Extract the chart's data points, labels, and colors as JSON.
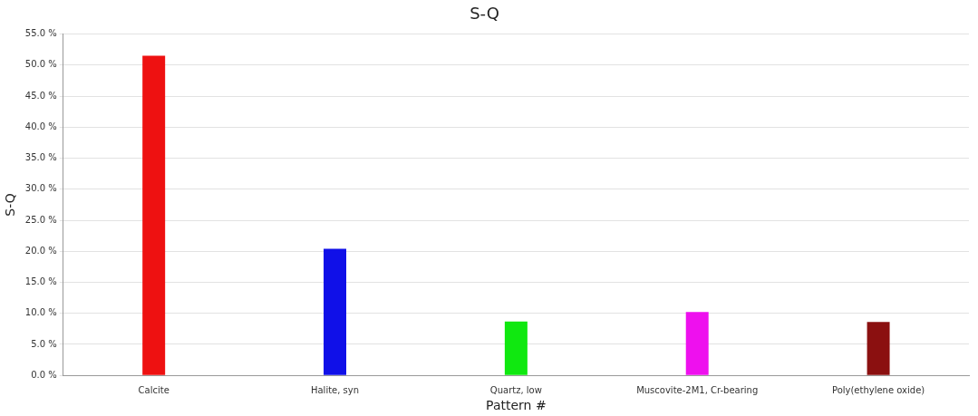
{
  "chart_data": {
    "type": "bar",
    "title": "S-Q",
    "xlabel": "Pattern #",
    "ylabel": "S-Q",
    "categories": [
      "Calcite",
      "Halite, syn",
      "Quartz, low",
      "Muscovite-2M1, Cr-bearing",
      "Poly(ethylene oxide)"
    ],
    "values": [
      51.5,
      20.4,
      8.7,
      10.2,
      8.6
    ],
    "colors": [
      "#ee1111",
      "#1010e8",
      "#10e810",
      "#ee10ee",
      "#8b1010"
    ],
    "ylim": [
      0,
      55
    ],
    "yticks": [
      {
        "value": 0,
        "label": "0.0 %"
      },
      {
        "value": 5,
        "label": "5.0 %"
      },
      {
        "value": 10,
        "label": "10.0 %"
      },
      {
        "value": 15,
        "label": "15.0 %"
      },
      {
        "value": 20,
        "label": "20.0 %"
      },
      {
        "value": 25,
        "label": "25.0 %"
      },
      {
        "value": 30,
        "label": "30.0 %"
      },
      {
        "value": 35,
        "label": "35.0 %"
      },
      {
        "value": 40,
        "label": "40.0 %"
      },
      {
        "value": 45,
        "label": "45.0 %"
      },
      {
        "value": 50,
        "label": "50.0 %"
      },
      {
        "value": 55,
        "label": "55.0 %"
      }
    ],
    "grid": "y",
    "legend": false
  }
}
